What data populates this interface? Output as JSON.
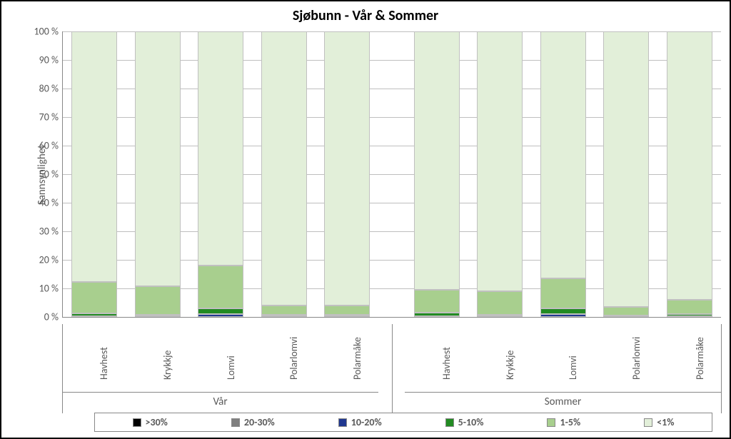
{
  "chart": {
    "type": "stacked-bar-100",
    "title": "Sjøbunn - Vår & Sommer",
    "title_fontsize": 20,
    "title_fontweight": "bold",
    "background_color": "#ffffff",
    "border_color": "#000000",
    "grid_color": "#bfbfbf",
    "axis_color": "#888888",
    "label_color": "#595959",
    "label_fontsize": 14,
    "y_axis": {
      "title": "Sannsynlighet",
      "min": 0,
      "max": 100,
      "tick_step": 10,
      "unit_suffix": " %"
    },
    "groups": [
      {
        "label": "Vår",
        "categories": [
          "Havhest",
          "Krykkje",
          "Lomvi",
          "Polarlomvi",
          "Polarmåke"
        ]
      },
      {
        "label": "Sommer",
        "categories": [
          "Havhest",
          "Krykkje",
          "Lomvi",
          "Polarlomvi",
          "Polarmåke"
        ]
      }
    ],
    "series": [
      {
        "name": ">30%",
        "color": "#000000"
      },
      {
        "name": "20-30%",
        "color": "#7f7f7f"
      },
      {
        "name": "10-20%",
        "color": "#203890"
      },
      {
        "name": "5-10%",
        "color": "#228b22"
      },
      {
        "name": "1-5%",
        "color": "#a8cf8e"
      },
      {
        "name": "<1%",
        "color": "#e2efd9"
      }
    ],
    "bar_width_ratio": 0.72,
    "group_gap_ratio": 0.04,
    "data": [
      {
        "group": "Vår",
        "category": "Havhest",
        "values": [
          0.0,
          0.0,
          0.3,
          1.0,
          11.0,
          87.7
        ]
      },
      {
        "group": "Vår",
        "category": "Krykkje",
        "values": [
          0.0,
          0.0,
          0.2,
          0.5,
          10.0,
          89.3
        ]
      },
      {
        "group": "Vår",
        "category": "Lomvi",
        "values": [
          0.0,
          0.0,
          1.0,
          2.0,
          15.0,
          82.0
        ]
      },
      {
        "group": "Vår",
        "category": "Polarlomvi",
        "values": [
          0.0,
          0.0,
          0.2,
          0.5,
          3.3,
          96.0
        ]
      },
      {
        "group": "Vår",
        "category": "Polarmåke",
        "values": [
          0.0,
          0.0,
          0.2,
          0.5,
          3.3,
          96.0
        ]
      },
      {
        "group": "Sommer",
        "category": "Havhest",
        "values": [
          0.0,
          0.0,
          0.3,
          1.2,
          8.0,
          90.5
        ]
      },
      {
        "group": "Sommer",
        "category": "Krykkje",
        "values": [
          0.0,
          0.0,
          0.2,
          0.5,
          8.3,
          91.0
        ]
      },
      {
        "group": "Sommer",
        "category": "Lomvi",
        "values": [
          0.0,
          0.0,
          1.0,
          2.0,
          10.5,
          86.5
        ]
      },
      {
        "group": "Sommer",
        "category": "Polarlomvi",
        "values": [
          0.0,
          0.0,
          0.2,
          0.3,
          3.0,
          96.5
        ]
      },
      {
        "group": "Sommer",
        "category": "Polarmåke",
        "values": [
          0.0,
          0.0,
          0.3,
          0.7,
          5.0,
          94.0
        ]
      }
    ]
  }
}
